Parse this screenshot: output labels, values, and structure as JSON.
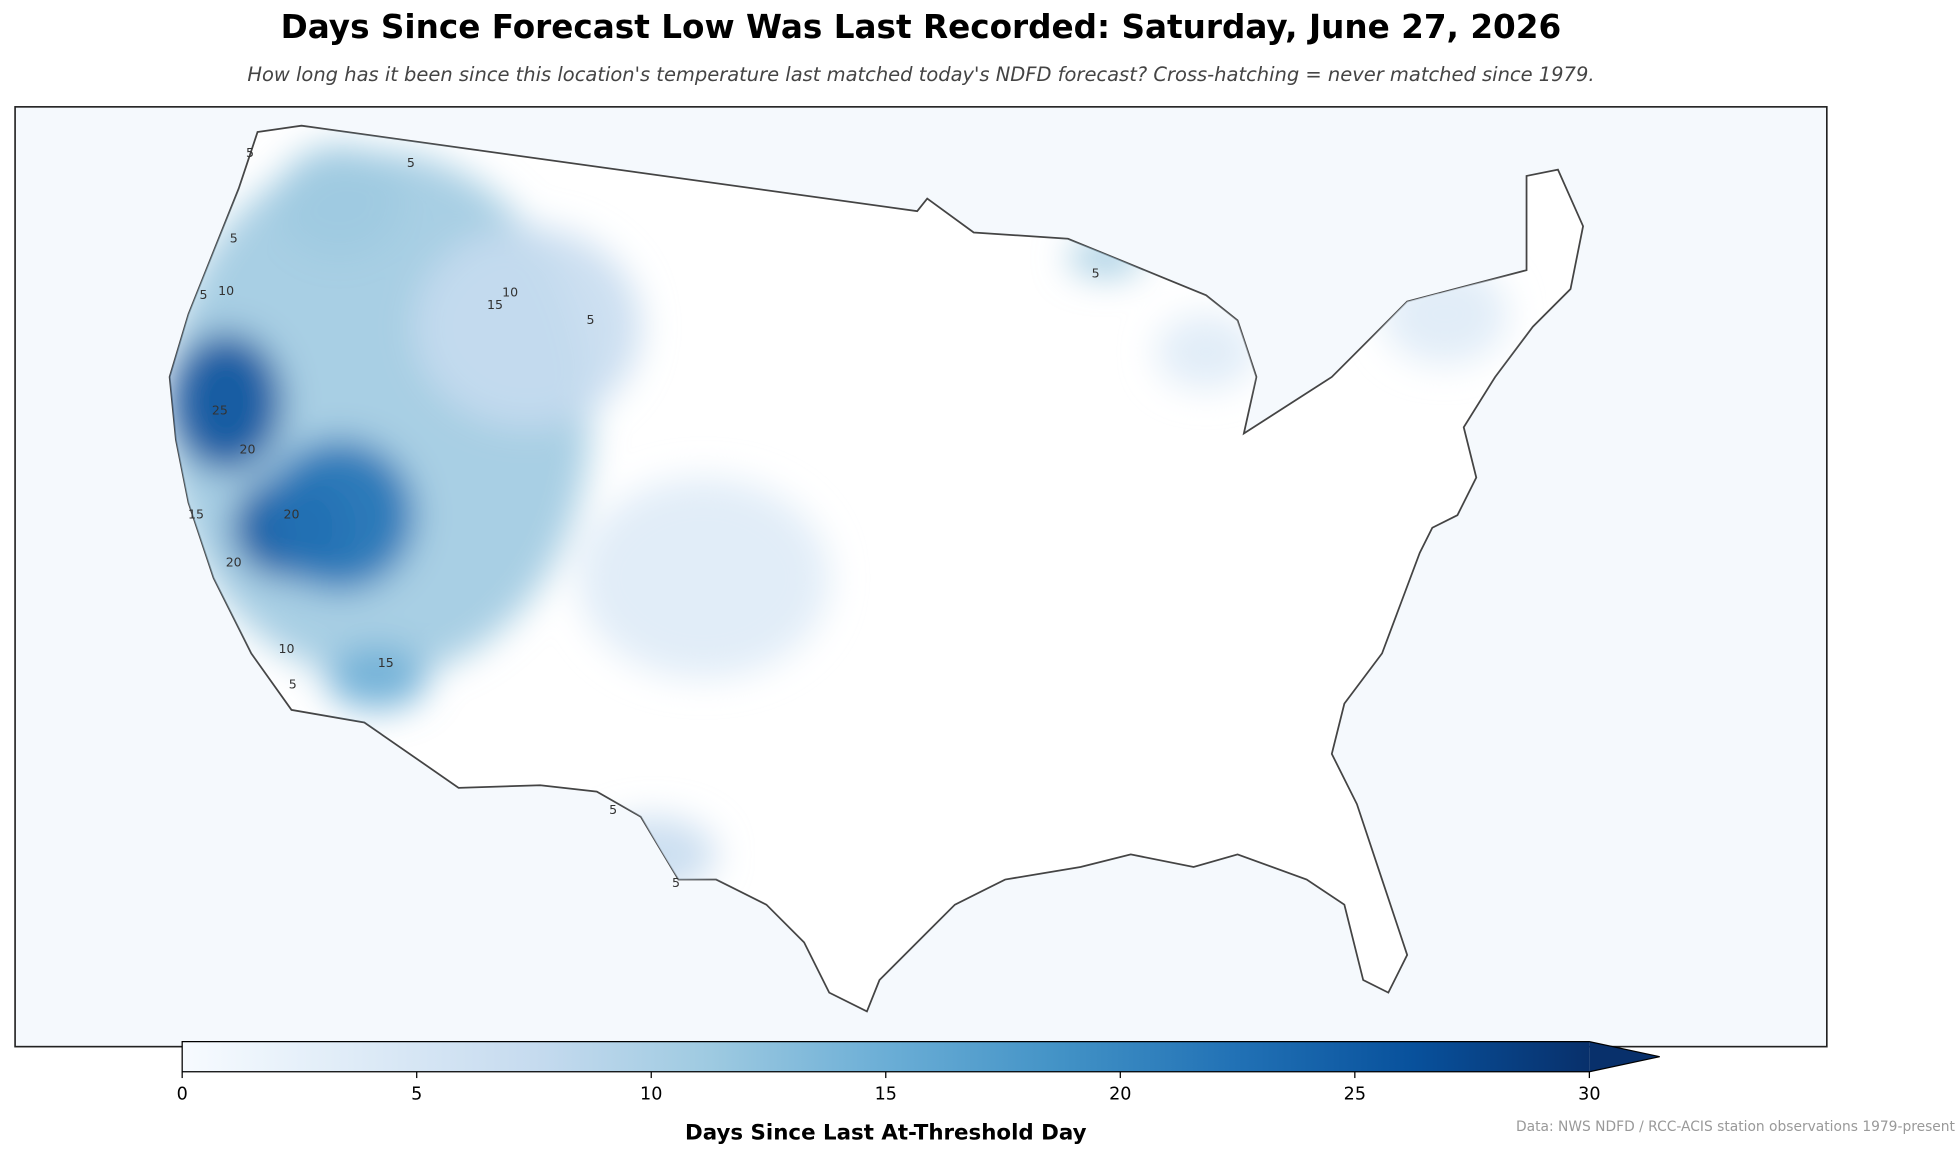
{
  "title": "Days Since Forecast Low Was Last Recorded: Saturday, June 27, 2026",
  "subtitle": "How long has it been since this location's temperature last matched today's NDFD forecast? Cross-hatching = never matched since 1979.",
  "map": {
    "contour_labels": [
      5,
      5,
      5,
      5,
      5,
      5,
      5,
      5,
      5,
      10,
      10,
      10,
      15,
      15,
      15,
      20,
      20,
      20,
      25
    ]
  },
  "colorbar": {
    "label": "Days Since Last At-Threshold Day",
    "lim": [
      0,
      30
    ],
    "ticks": [
      0,
      5,
      10,
      15,
      20,
      25,
      30
    ],
    "colormap": [
      "#f7fbff",
      "#deebf7",
      "#c6dbef",
      "#9ecae1",
      "#6baed6",
      "#4292c6",
      "#2171b5",
      "#08519c",
      "#08306b"
    ]
  },
  "credit": "Data: NWS NDFD / RCC-ACIS station observations 1979-present"
}
